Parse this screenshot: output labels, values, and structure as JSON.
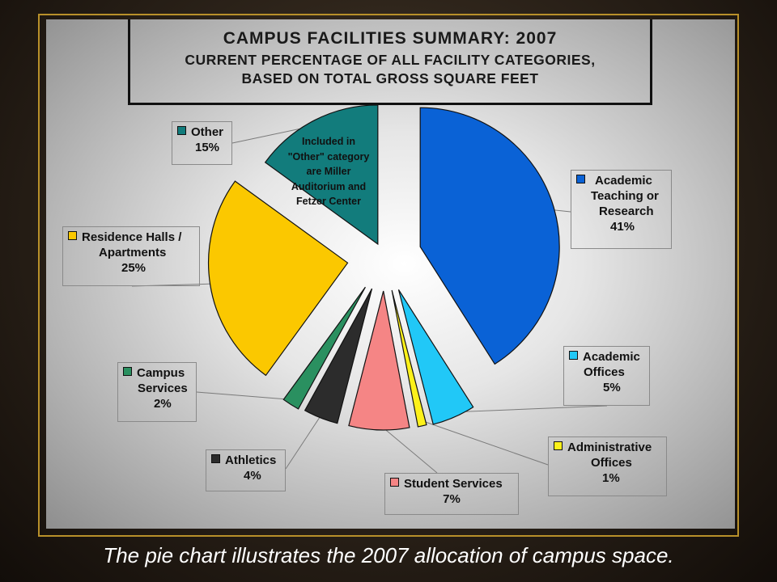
{
  "title": {
    "line1": "CAMPUS FACILITIES SUMMARY: 2007",
    "line2": "CURRENT PERCENTAGE OF ALL FACILITY CATEGORIES,",
    "line3": "BASED ON TOTAL GROSS SQUARE FEET"
  },
  "note": {
    "lines": [
      "Included in",
      "\"Other\" category",
      "are Miller",
      "Auditorium and",
      "Fetzer Center"
    ]
  },
  "caption": "The pie chart illustrates the 2007 allocation of campus space.",
  "chart_data": {
    "type": "pie",
    "title": "CAMPUS FACILITIES SUMMARY: 2007",
    "subtitle": "CURRENT PERCENTAGE OF ALL FACILITY CATEGORIES, BASED ON TOTAL GROSS SQUARE FEET",
    "slices": [
      {
        "key": "academic",
        "name": "Academic Teaching or Research",
        "value": 41,
        "pct_label": "41%",
        "color": "#0a62d6"
      },
      {
        "key": "offices",
        "name": "Academic Offices",
        "value": 5,
        "pct_label": "5%",
        "color": "#21c8f7"
      },
      {
        "key": "admin",
        "name": "Administrative Offices",
        "value": 1,
        "pct_label": "1%",
        "color": "#fdf11a"
      },
      {
        "key": "student",
        "name": "Student Services",
        "value": 7,
        "pct_label": "7%",
        "color": "#f58585"
      },
      {
        "key": "athletics",
        "name": "Athletics",
        "value": 4,
        "pct_label": "4%",
        "color": "#2c2c2c"
      },
      {
        "key": "campus",
        "name": "Campus Services",
        "value": 2,
        "pct_label": "2%",
        "color": "#2a9060"
      },
      {
        "key": "residence",
        "name": "Residence Halls / Apartments",
        "value": 25,
        "pct_label": "25%",
        "color": "#fbc800"
      },
      {
        "key": "other",
        "name": "Other",
        "value": 15,
        "pct_label": "15%",
        "color": "#127c7c"
      }
    ]
  },
  "labels": {
    "academic": {
      "lines": [
        "Academic",
        "Teaching or",
        "Research",
        "41%"
      ],
      "bg": "#ccf5ff"
    },
    "offices": {
      "lines": [
        "Academic",
        "Offices",
        "5%"
      ],
      "bg": "#ccf5ff"
    },
    "admin": {
      "lines": [
        "Administrative",
        "Offices",
        "1%"
      ],
      "bg": "#ffffd0"
    },
    "student": {
      "lines": [
        "Student Services",
        "7%"
      ],
      "bg": "#fbaae8"
    },
    "athletics": {
      "lines": [
        "Athletics",
        "4%"
      ],
      "bg": "#999999"
    },
    "campus": {
      "lines": [
        "Campus",
        "Services",
        "2%"
      ],
      "bg": "#ccffcc"
    },
    "residence": {
      "lines": [
        "Residence Halls /",
        "Apartments",
        "25%"
      ],
      "bg": "#ffd9b3"
    },
    "other": {
      "lines": [
        "Other",
        "15%"
      ],
      "bg": "#ccffcc"
    }
  }
}
